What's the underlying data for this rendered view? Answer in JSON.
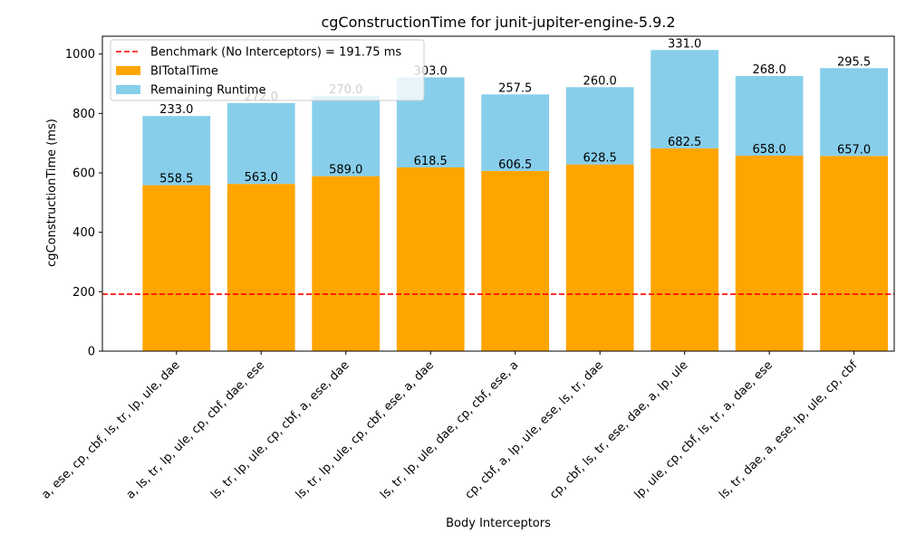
{
  "chart_data": {
    "type": "bar",
    "stacked": true,
    "title": "cgConstructionTime for junit-jupiter-engine-5.9.2",
    "xlabel": "Body Interceptors",
    "ylabel": "cgConstructionTime (ms)",
    "ylim": [
      0,
      1060
    ],
    "yticks": [
      0,
      200,
      400,
      600,
      800,
      1000
    ],
    "grid": false,
    "legend_position": "top-left",
    "categories": [
      "a, ese, cp, cbf, ls, tr, lp, ule, dae",
      "a, ls, tr, lp, ule, cp, cbf, dae, ese",
      "ls, tr, lp, ule, cp, cbf, a, ese, dae",
      "ls, tr, lp, ule, cp, cbf, ese, a, dae",
      "ls, tr, lp, ule, dae, cp, cbf, ese, a",
      "cp, cbf, a, lp, ule, ese, ls, tr, dae",
      "cp, cbf, ls, tr, ese, dae, a, lp, ule",
      "lp, ule, cp, cbf, ls, tr, a, dae, ese",
      "ls, tr, dae, a, ese, lp, ule, cp, cbf"
    ],
    "series": [
      {
        "name": "BITotalTime",
        "color": "#ffa500",
        "values": [
          558.5,
          563.0,
          589.0,
          618.5,
          606.5,
          628.5,
          682.5,
          658.0,
          657.0
        ],
        "labels": [
          "558.5",
          "563.0",
          "589.0",
          "618.5",
          "606.5",
          "628.5",
          "682.5",
          "658.0",
          "657.0"
        ]
      },
      {
        "name": "Remaining Runtime",
        "color": "#87ceeb",
        "values": [
          233.0,
          272.0,
          270.0,
          303.0,
          257.5,
          260.0,
          331.0,
          268.0,
          295.5
        ],
        "labels": [
          "233.0",
          "272.0",
          "270.0",
          "303.0",
          "257.5",
          "260.0",
          "331.0",
          "268.0",
          "295.5"
        ]
      }
    ],
    "benchmark": {
      "name": "Benchmark (No Interceptors) = 191.75 ms",
      "value": 191.75,
      "color": "#ff0000",
      "style": "dashed"
    }
  }
}
